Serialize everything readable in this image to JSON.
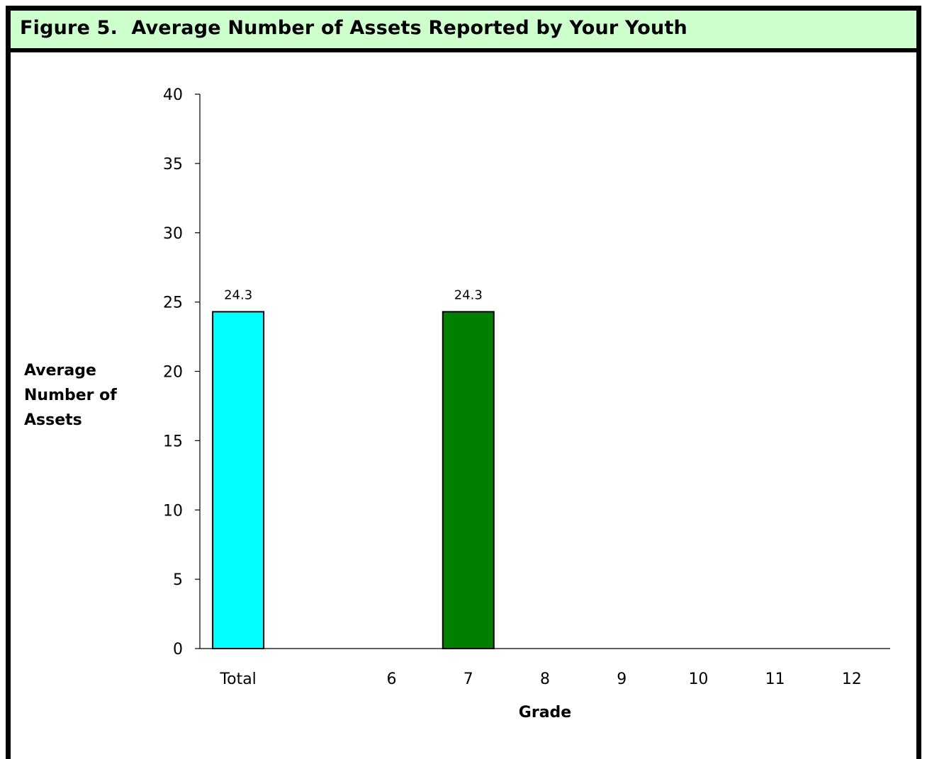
{
  "title": "Figure 5.  Average Number of Assets Reported by Your Youth",
  "chart_data": {
    "type": "bar",
    "categories": [
      "Total",
      "",
      "6",
      "7",
      "8",
      "9",
      "10",
      "11",
      "12"
    ],
    "values": [
      24.3,
      null,
      null,
      24.3,
      null,
      null,
      null,
      null,
      null
    ],
    "data_labels": [
      "24.3",
      "",
      "",
      "24.3",
      "",
      "",
      "",
      "",
      ""
    ],
    "bar_colors": [
      "#00ffff",
      "",
      "",
      "#008000",
      "",
      "",
      "",
      "",
      ""
    ],
    "xlabel": "Grade",
    "ylabel": [
      "Average",
      "Number of",
      "Assets"
    ],
    "ylim": [
      0,
      40
    ],
    "yticks": [
      0,
      5,
      10,
      15,
      20,
      25,
      30,
      35,
      40
    ],
    "grid": false,
    "legend": "none"
  },
  "colors": {
    "title_band": "#ccffcc",
    "frame": "#000000",
    "axis": "#000000"
  }
}
